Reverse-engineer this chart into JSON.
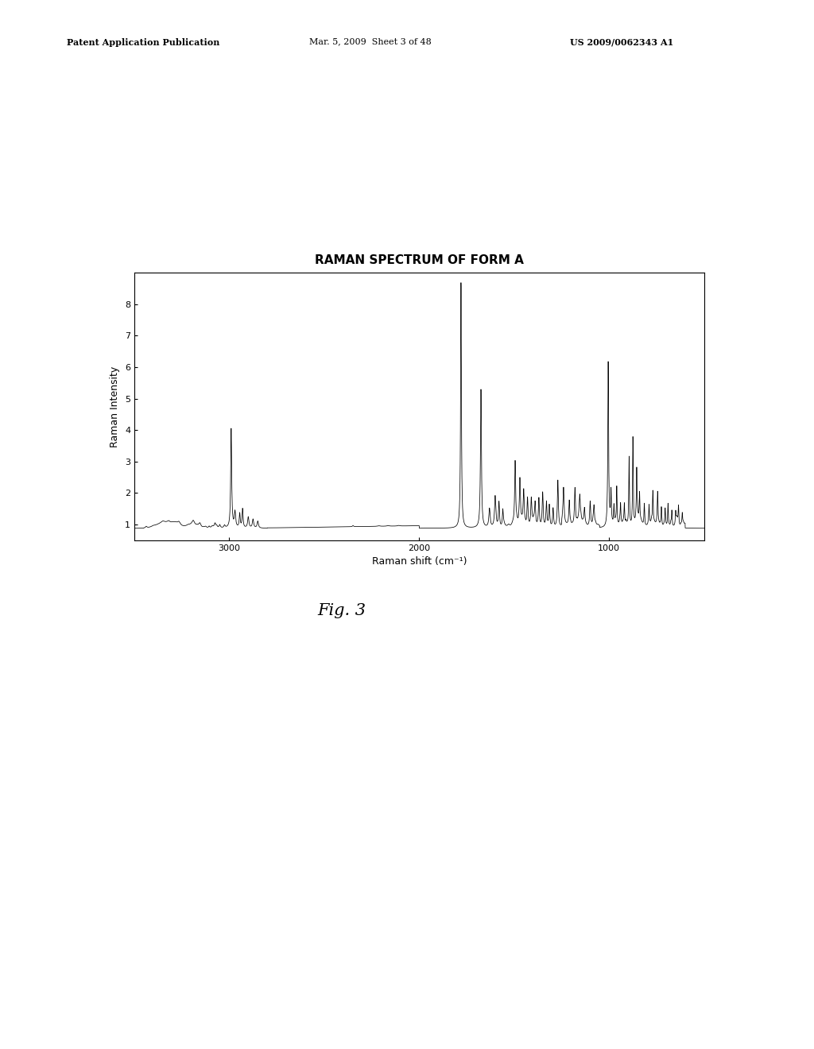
{
  "title": "RAMAN SPECTRUM OF FORM A",
  "xlabel": "Raman shift (cm⁻¹)",
  "ylabel": "Raman Intensity",
  "xlim": [
    3500,
    500
  ],
  "ylim": [
    0.5,
    9.0
  ],
  "yticks": [
    1,
    2,
    3,
    4,
    5,
    6,
    7,
    8
  ],
  "xticks": [
    3000,
    2000,
    1000
  ],
  "header_left": "Patent Application Publication",
  "header_mid": "Mar. 5, 2009  Sheet 3 of 48",
  "header_right": "US 2009/0062343 A1",
  "fig_label": "Fig. 3",
  "background_color": "#ffffff",
  "line_color": "#000000",
  "title_fontsize": 11,
  "axis_fontsize": 9,
  "tick_fontsize": 8,
  "header_fontsize": 8
}
